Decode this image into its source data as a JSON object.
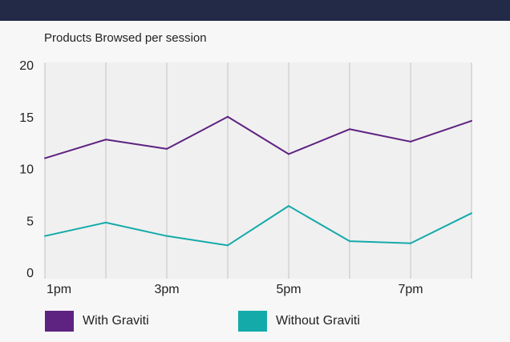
{
  "chart_data": {
    "type": "line",
    "title": "Products Browsed per session",
    "xlabel": "",
    "ylabel": "",
    "categories": [
      "1pm",
      "",
      "3pm",
      "",
      "5pm",
      "",
      "7pm",
      ""
    ],
    "ylim": [
      0,
      20
    ],
    "yticks": [
      0,
      5,
      10,
      15,
      20
    ],
    "grid": "vertical",
    "legend_position": "bottom-left",
    "series": [
      {
        "name": "With Graviti",
        "color": "#5e2281",
        "values": [
          11.0,
          12.8,
          11.9,
          15.0,
          11.4,
          13.8,
          12.6,
          14.6
        ]
      },
      {
        "name": "Without Graviti",
        "color": "#14aaaa",
        "values": [
          3.5,
          4.8,
          3.5,
          2.6,
          6.4,
          3.0,
          2.8,
          5.7
        ]
      }
    ]
  }
}
